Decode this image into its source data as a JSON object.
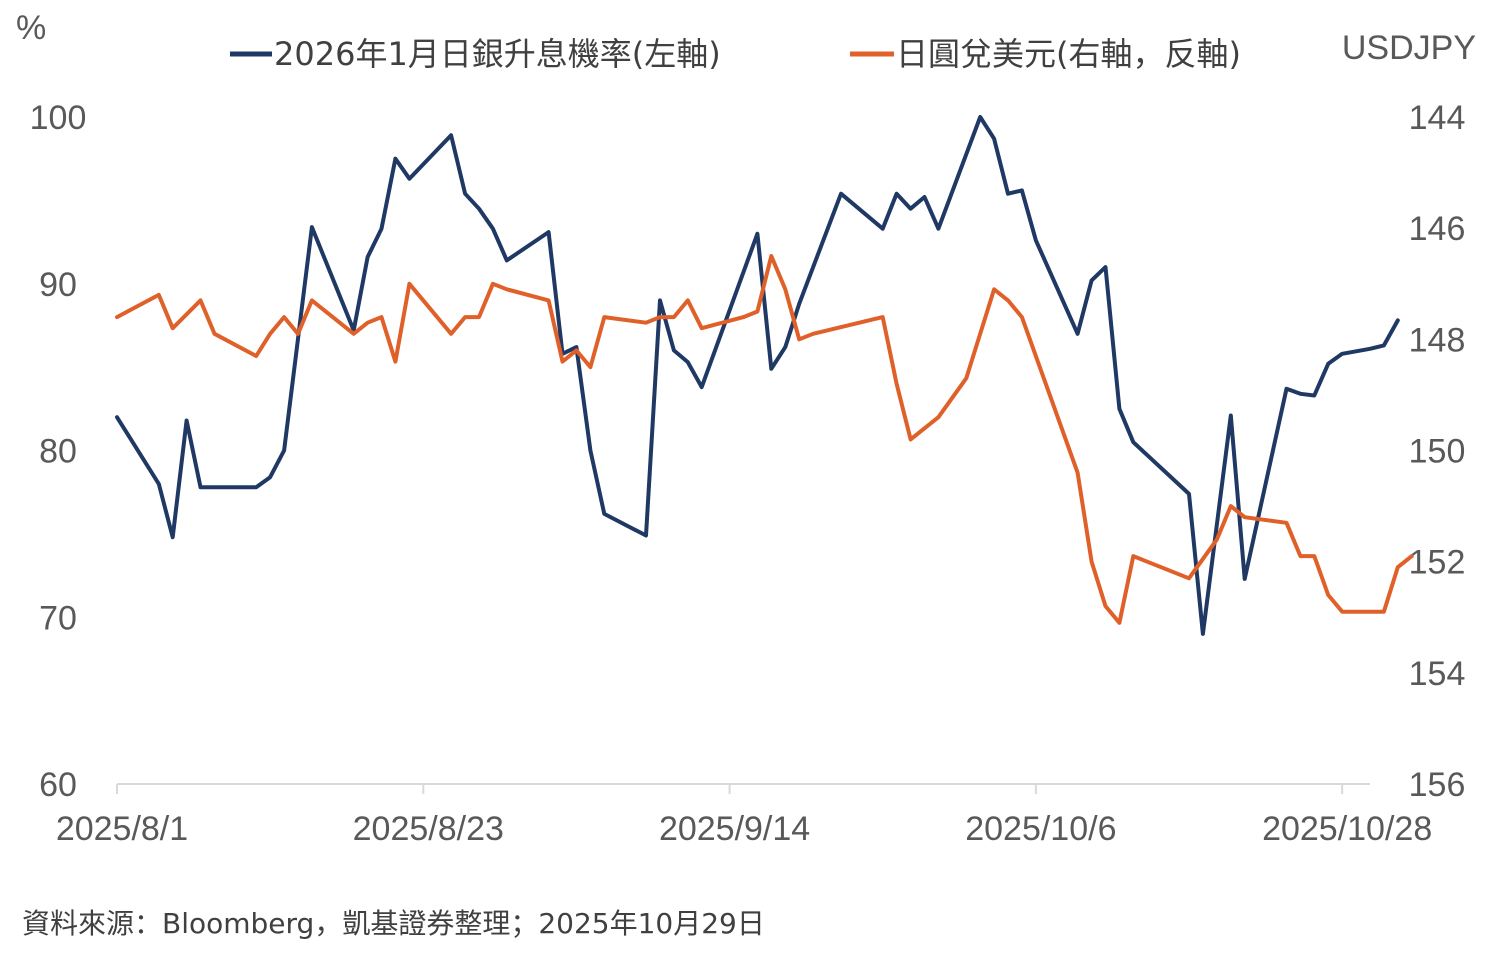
{
  "chart_data": {
    "type": "line",
    "left_axis_unit": "%",
    "right_axis_unit": "USDJPY",
    "left_ylim": [
      60,
      100
    ],
    "left_ticks": [
      "100",
      "90",
      "80",
      "70",
      "60"
    ],
    "right_ylim": [
      144,
      156
    ],
    "right_reversed": true,
    "right_ticks": [
      "144",
      "146",
      "148",
      "150",
      "152",
      "154",
      "156"
    ],
    "x_range": [
      "2025-08-01",
      "2025-10-30"
    ],
    "x_ticks": [
      {
        "label": "2025/8/1",
        "date": "2025-08-01"
      },
      {
        "label": "2025/8/23",
        "date": "2025-08-23"
      },
      {
        "label": "2025/9/14",
        "date": "2025-09-14"
      },
      {
        "label": "2025/10/6",
        "date": "2025-10-06"
      },
      {
        "label": "2025/10/28",
        "date": "2025-10-28"
      }
    ],
    "grid": false,
    "legend_position": "top",
    "series": [
      {
        "name": "2026年1月日銀升息機率(左軸)",
        "axis": "left",
        "color": "#1F3864",
        "points": [
          [
            "2025-08-01",
            82.0
          ],
          [
            "2025-08-04",
            78.0
          ],
          [
            "2025-08-05",
            74.8
          ],
          [
            "2025-08-06",
            81.8
          ],
          [
            "2025-08-07",
            77.8
          ],
          [
            "2025-08-08",
            77.8
          ],
          [
            "2025-08-11",
            77.8
          ],
          [
            "2025-08-12",
            78.4
          ],
          [
            "2025-08-13",
            80.0
          ],
          [
            "2025-08-15",
            93.4
          ],
          [
            "2025-08-18",
            87.2
          ],
          [
            "2025-08-19",
            91.6
          ],
          [
            "2025-08-20",
            93.3
          ],
          [
            "2025-08-21",
            97.5
          ],
          [
            "2025-08-22",
            96.3
          ],
          [
            "2025-08-25",
            98.9
          ],
          [
            "2025-08-26",
            95.4
          ],
          [
            "2025-08-27",
            94.5
          ],
          [
            "2025-08-28",
            93.3
          ],
          [
            "2025-08-29",
            91.4
          ],
          [
            "2025-09-01",
            93.1
          ],
          [
            "2025-09-02",
            85.8
          ],
          [
            "2025-09-03",
            86.2
          ],
          [
            "2025-09-04",
            80.0
          ],
          [
            "2025-09-05",
            76.2
          ],
          [
            "2025-09-08",
            74.9
          ],
          [
            "2025-09-09",
            89.0
          ],
          [
            "2025-09-10",
            86.0
          ],
          [
            "2025-09-11",
            85.3
          ],
          [
            "2025-09-12",
            83.8
          ],
          [
            "2025-09-16",
            93.0
          ],
          [
            "2025-09-17",
            84.9
          ],
          [
            "2025-09-18",
            86.2
          ],
          [
            "2025-09-19",
            88.8
          ],
          [
            "2025-09-22",
            95.4
          ],
          [
            "2025-09-25",
            93.3
          ],
          [
            "2025-09-26",
            95.4
          ],
          [
            "2025-09-27",
            94.5
          ],
          [
            "2025-09-28",
            95.2
          ],
          [
            "2025-09-29",
            93.3
          ],
          [
            "2025-10-02",
            100.0
          ],
          [
            "2025-10-03",
            98.7
          ],
          [
            "2025-10-04",
            95.4
          ],
          [
            "2025-10-05",
            95.6
          ],
          [
            "2025-10-06",
            92.6
          ],
          [
            "2025-10-09",
            87.0
          ],
          [
            "2025-10-10",
            90.2
          ],
          [
            "2025-10-11",
            91.0
          ],
          [
            "2025-10-12",
            82.5
          ],
          [
            "2025-10-13",
            80.5
          ],
          [
            "2025-10-17",
            77.4
          ],
          [
            "2025-10-18",
            69.0
          ],
          [
            "2025-10-20",
            82.1
          ],
          [
            "2025-10-21",
            72.3
          ],
          [
            "2025-10-24",
            83.7
          ],
          [
            "2025-10-25",
            83.4
          ],
          [
            "2025-10-26",
            83.3
          ],
          [
            "2025-10-27",
            85.2
          ],
          [
            "2025-10-28",
            85.8
          ],
          [
            "2025-10-30",
            86.1
          ],
          [
            "2025-10-31",
            86.3
          ],
          [
            "2025-11-01",
            87.8
          ]
        ]
      },
      {
        "name": "日圓兌美元(右軸，反軸)",
        "axis": "right",
        "color": "#E0602A",
        "points": [
          [
            "2025-08-01",
            147.6
          ],
          [
            "2025-08-04",
            147.2
          ],
          [
            "2025-08-05",
            147.8
          ],
          [
            "2025-08-07",
            147.3
          ],
          [
            "2025-08-08",
            147.9
          ],
          [
            "2025-08-11",
            148.3
          ],
          [
            "2025-08-12",
            147.9
          ],
          [
            "2025-08-13",
            147.6
          ],
          [
            "2025-08-14",
            147.9
          ],
          [
            "2025-08-15",
            147.3
          ],
          [
            "2025-08-18",
            147.9
          ],
          [
            "2025-08-19",
            147.7
          ],
          [
            "2025-08-20",
            147.6
          ],
          [
            "2025-08-21",
            148.4
          ],
          [
            "2025-08-22",
            147.0
          ],
          [
            "2025-08-25",
            147.9
          ],
          [
            "2025-08-26",
            147.6
          ],
          [
            "2025-08-27",
            147.6
          ],
          [
            "2025-08-28",
            147.0
          ],
          [
            "2025-08-29",
            147.1
          ],
          [
            "2025-09-01",
            147.3
          ],
          [
            "2025-09-02",
            148.4
          ],
          [
            "2025-09-03",
            148.2
          ],
          [
            "2025-09-04",
            148.5
          ],
          [
            "2025-09-05",
            147.6
          ],
          [
            "2025-09-08",
            147.7
          ],
          [
            "2025-09-09",
            147.6
          ],
          [
            "2025-09-10",
            147.6
          ],
          [
            "2025-09-11",
            147.3
          ],
          [
            "2025-09-12",
            147.8
          ],
          [
            "2025-09-15",
            147.6
          ],
          [
            "2025-09-16",
            147.5
          ],
          [
            "2025-09-17",
            146.5
          ],
          [
            "2025-09-18",
            147.1
          ],
          [
            "2025-09-19",
            148.0
          ],
          [
            "2025-09-20",
            147.9
          ],
          [
            "2025-09-25",
            147.6
          ],
          [
            "2025-09-26",
            148.8
          ],
          [
            "2025-09-27",
            149.8
          ],
          [
            "2025-09-29",
            149.4
          ],
          [
            "2025-10-01",
            148.7
          ],
          [
            "2025-10-03",
            147.1
          ],
          [
            "2025-10-04",
            147.3
          ],
          [
            "2025-10-05",
            147.6
          ],
          [
            "2025-10-09",
            150.4
          ],
          [
            "2025-10-10",
            152.0
          ],
          [
            "2025-10-11",
            152.8
          ],
          [
            "2025-10-12",
            153.1
          ],
          [
            "2025-10-13",
            151.9
          ],
          [
            "2025-10-17",
            152.3
          ],
          [
            "2025-10-19",
            151.6
          ],
          [
            "2025-10-20",
            151.0
          ],
          [
            "2025-10-21",
            151.2
          ],
          [
            "2025-10-24",
            151.3
          ],
          [
            "2025-10-25",
            151.9
          ],
          [
            "2025-10-26",
            151.9
          ],
          [
            "2025-10-27",
            152.6
          ],
          [
            "2025-10-28",
            152.9
          ],
          [
            "2025-10-31",
            152.9
          ],
          [
            "2025-11-01",
            152.1
          ],
          [
            "2025-11-02",
            151.9
          ]
        ]
      }
    ]
  },
  "footer": {
    "source": "資料來源：Bloomberg，凱基證券整理；2025年10月29日"
  }
}
